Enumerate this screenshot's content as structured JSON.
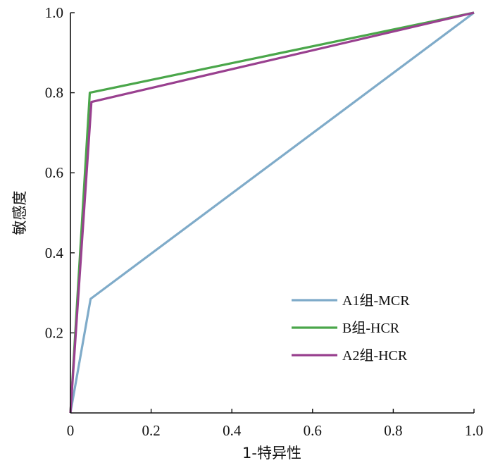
{
  "chart_data": {
    "type": "line",
    "title": "",
    "xlabel": "1-特异性",
    "ylabel": "敏感度",
    "xlim": [
      0,
      1
    ],
    "ylim": [
      0,
      1
    ],
    "xticks": [
      "0",
      "0.2",
      "0.4",
      "0.6",
      "0.8",
      "1.0"
    ],
    "yticks": [
      "0.2",
      "0.4",
      "0.6",
      "0.8",
      "1.0"
    ],
    "grid": false,
    "legend_position": "bottom-right",
    "series": [
      {
        "name": "A1组-MCR",
        "color": "#7fabc9",
        "x": [
          0,
          0.05,
          1
        ],
        "y": [
          0,
          0.285,
          1
        ]
      },
      {
        "name": "B组-HCR",
        "color": "#4aa64a",
        "x": [
          0,
          0.048,
          1
        ],
        "y": [
          0,
          0.8,
          1
        ]
      },
      {
        "name": "A2组-HCR",
        "color": "#99408f",
        "x": [
          0,
          0.052,
          1
        ],
        "y": [
          0,
          0.777,
          1
        ]
      }
    ]
  }
}
